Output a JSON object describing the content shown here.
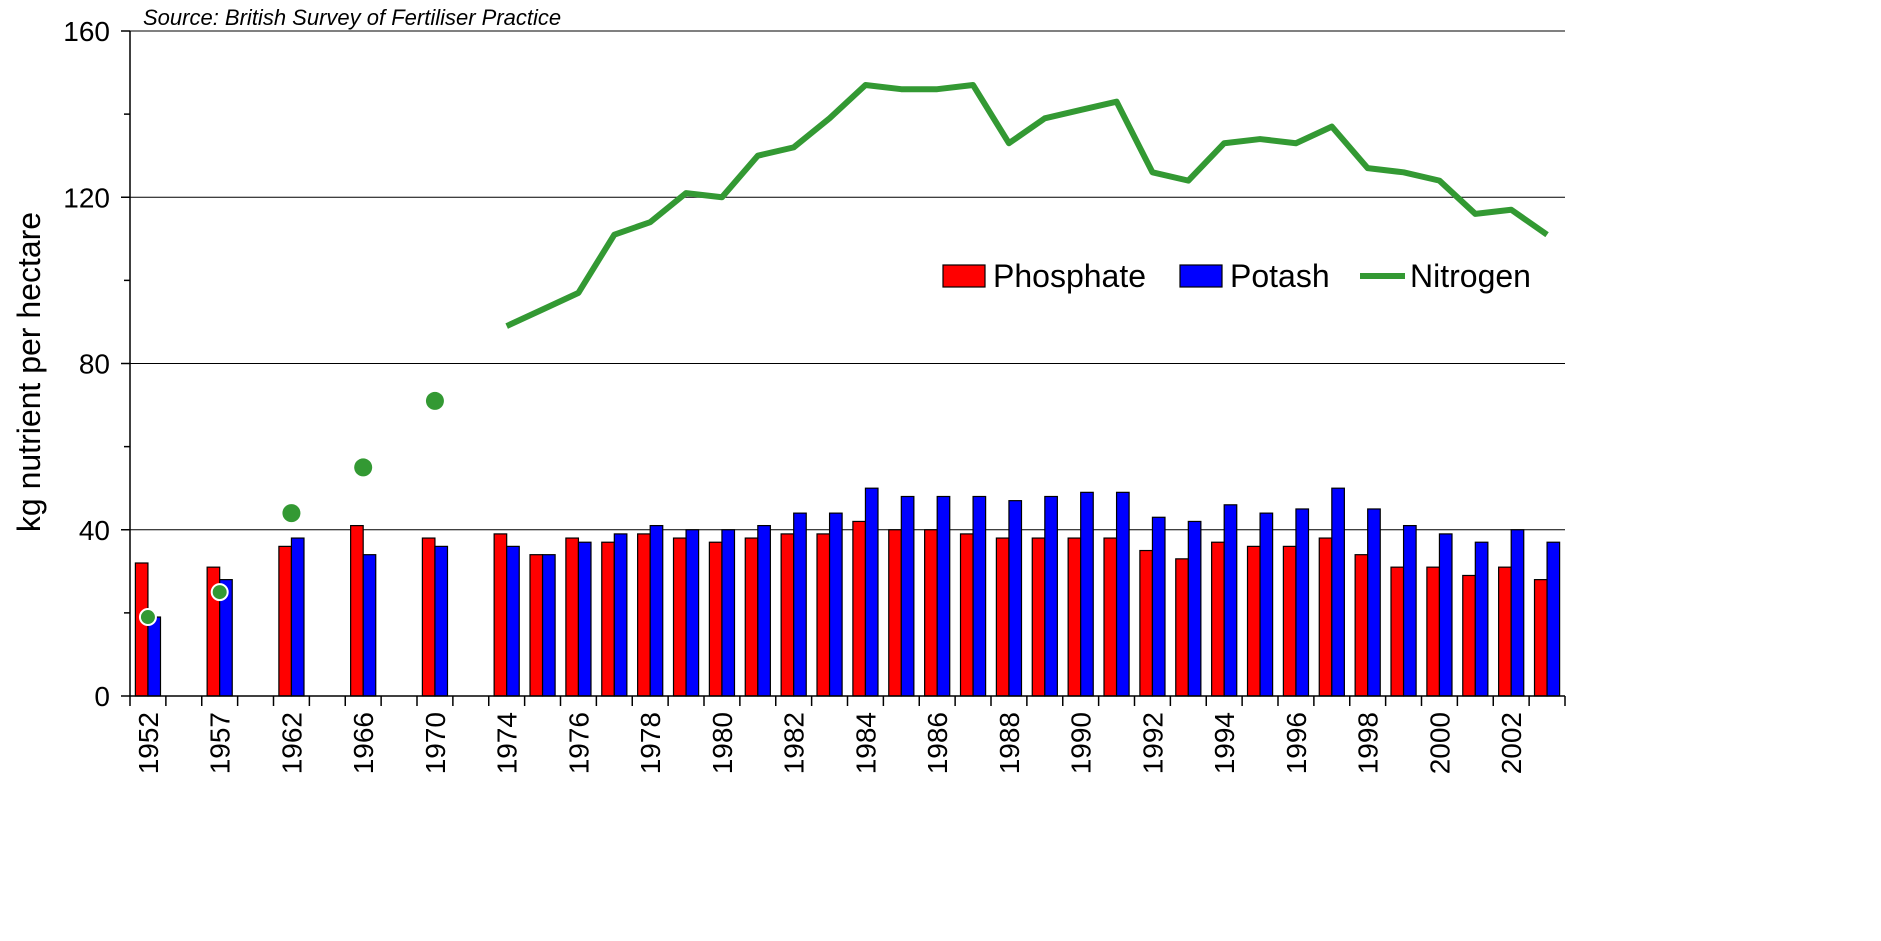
{
  "chart_data": {
    "type": "bar",
    "subtitle": "Source:  British Survey of Fertiliser Practice",
    "y_label": "kg nutrient per hectare",
    "categories": [
      "1952",
      null,
      "1957",
      null,
      "1962",
      null,
      "1966",
      null,
      "1970",
      null,
      "1974",
      null,
      "1976",
      null,
      "1978",
      null,
      "1980",
      null,
      "1982",
      null,
      "1984",
      null,
      "1986",
      null,
      "1988",
      null,
      "1990",
      null,
      "1992",
      null,
      "1994",
      null,
      "1996",
      null,
      "1998",
      null,
      "2000",
      null,
      "2002",
      null
    ],
    "series": [
      {
        "name": "Phosphate",
        "color": "#ff0000",
        "type": "bar",
        "values": [
          32,
          null,
          31,
          null,
          36,
          null,
          41,
          null,
          38,
          null,
          39,
          34,
          38,
          37,
          39,
          38,
          37,
          38,
          39,
          39,
          42,
          40,
          40,
          39,
          38,
          38,
          38,
          38,
          35,
          33,
          37,
          36,
          36,
          38,
          34,
          31,
          31,
          29,
          31,
          28
        ]
      },
      {
        "name": "Potash",
        "color": "#0000ff",
        "type": "bar",
        "values": [
          19,
          null,
          28,
          null,
          38,
          null,
          34,
          null,
          36,
          null,
          36,
          34,
          37,
          39,
          41,
          40,
          40,
          41,
          44,
          44,
          50,
          48,
          48,
          48,
          47,
          48,
          49,
          49,
          43,
          42,
          46,
          44,
          45,
          50,
          45,
          41,
          39,
          37,
          40,
          37
        ]
      },
      {
        "name": "Nitrogen",
        "color": "#339933",
        "type": "line",
        "values": [
          19,
          null,
          25,
          null,
          44,
          null,
          55,
          null,
          71,
          null,
          89,
          93,
          97,
          111,
          114,
          121,
          120,
          130,
          132,
          139,
          147,
          146,
          146,
          147,
          133,
          139,
          141,
          143,
          126,
          124,
          133,
          134,
          133,
          137,
          127,
          126,
          124,
          116,
          117,
          111
        ]
      }
    ],
    "ylim": [
      0,
      160
    ],
    "yticks": [
      0,
      40,
      80,
      120,
      160
    ],
    "minor_yticks": [
      20,
      60,
      100,
      140
    ],
    "grid": true,
    "legend": "right"
  }
}
